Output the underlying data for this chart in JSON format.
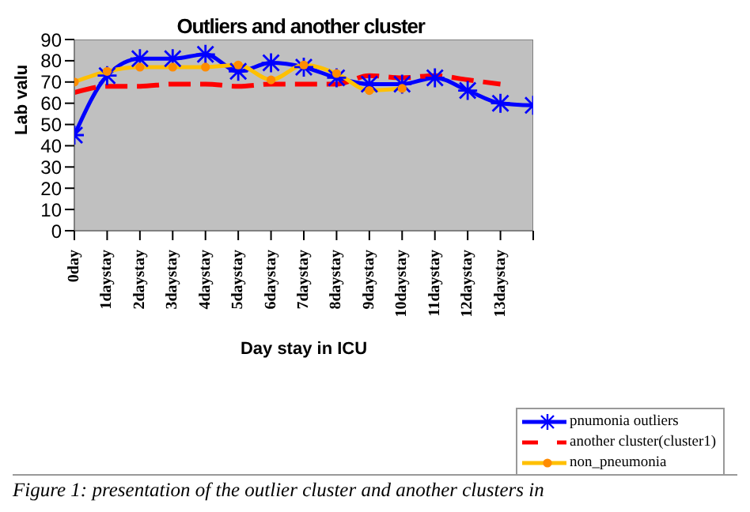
{
  "chart_data": {
    "type": "line",
    "title": "Outliers and another cluster",
    "xlabel": "Day stay in ICU",
    "ylabel": "Lab valu",
    "categories": [
      "0day",
      "1daystay",
      "2daystay",
      "3daystay",
      "4daystay",
      "5daystay",
      "6daystay",
      "7daystay",
      "8daystay",
      "9daystay",
      "10daystay",
      "11daystay",
      "12daystay",
      "13daystay",
      null
    ],
    "series": [
      {
        "name": "pnumonia outliers",
        "color": "#0000ff",
        "marker": "cross",
        "line_style": "solid",
        "values": [
          45,
          73,
          81,
          81,
          83,
          75,
          79,
          77,
          72,
          69,
          69,
          72,
          66,
          60,
          59
        ]
      },
      {
        "name": "another cluster(cluster1)",
        "color": "#ff0000",
        "marker": "none",
        "line_style": "dashed",
        "values": [
          65,
          68,
          68,
          69,
          69,
          68,
          69,
          69,
          69,
          73,
          72,
          73,
          71,
          69,
          null
        ]
      },
      {
        "name": "non_pneumonia",
        "color": "#ffc000",
        "marker": "circle",
        "line_style": "solid",
        "values": [
          70,
          75,
          77,
          77,
          77,
          78,
          71,
          78,
          74,
          66,
          67,
          null,
          null,
          null,
          null
        ]
      }
    ],
    "ylim": [
      0,
      90
    ],
    "yticks": [
      0,
      10,
      20,
      30,
      40,
      50,
      60,
      70,
      80,
      90
    ],
    "grid": false,
    "legend": "bottom right",
    "annotations": [
      "Figure 1: presentation of the outlier cluster and another clusters in"
    ]
  }
}
